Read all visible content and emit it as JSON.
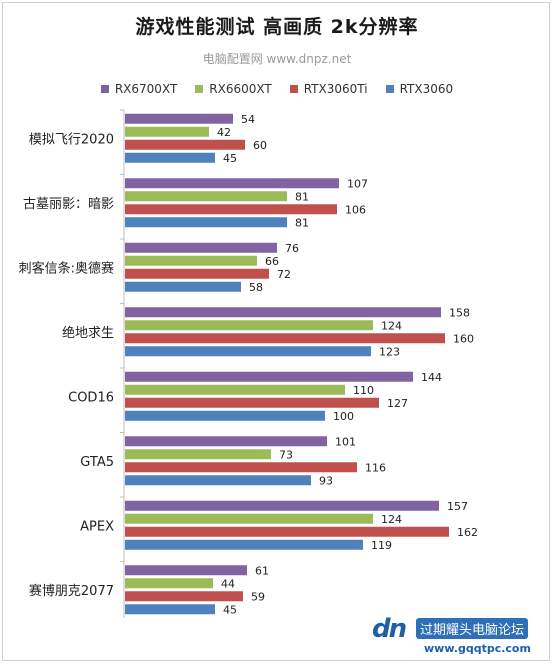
{
  "chart_data": {
    "type": "bar",
    "orientation": "horizontal",
    "title": "游戏性能测试 高画质 2k分辨率",
    "subtitle": "电脑配置网 www.dnpz.net",
    "categories": [
      "模拟飞行2020",
      "古墓丽影：暗影",
      "刺客信条:奥德赛",
      "绝地求生",
      "COD16",
      "GTA5",
      "APEX",
      "赛博朋克2077"
    ],
    "series": [
      {
        "name": "RX6700XT",
        "color": "#8064a2",
        "values": [
          54,
          107,
          76,
          158,
          144,
          101,
          157,
          61
        ]
      },
      {
        "name": "RX6600XT",
        "color": "#9bbb59",
        "values": [
          42,
          81,
          66,
          124,
          110,
          73,
          124,
          44
        ]
      },
      {
        "name": "RTX3060Ti",
        "color": "#c0504d",
        "values": [
          60,
          106,
          72,
          160,
          127,
          116,
          162,
          59
        ]
      },
      {
        "name": "RTX3060",
        "color": "#4f81bd",
        "values": [
          45,
          81,
          58,
          123,
          100,
          93,
          119,
          45
        ]
      }
    ],
    "xlim": [
      0,
      180
    ],
    "grid": false,
    "legend_position": "top"
  },
  "watermark": {
    "logo": "dn",
    "text": "过期耀头电脑论坛",
    "url": "www.gqqtpc.com"
  }
}
